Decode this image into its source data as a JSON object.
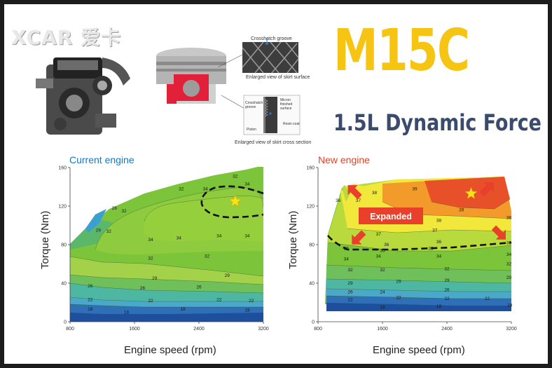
{
  "brand": {
    "watermark": "XCAR 爱卡"
  },
  "header": {
    "title": "M15C",
    "subtitle": "1.5L Dynamic Force"
  },
  "illustrations": {
    "skirt_surface_callout": "Crosshatch groove",
    "skirt_surface_caption": "Enlarged view of skirt surface",
    "cross_section_labels": [
      "Crosshatch groove",
      "Micron finished surface",
      "Resin coat",
      "Piston"
    ],
    "cross_section_caption": "Enlarged view of skirt cross section"
  },
  "colors": {
    "title_yellow": "#f6c514",
    "subtitle_navy": "#3a4b6b",
    "current_title": "#1478c8",
    "new_title": "#e8402a",
    "band_low": "#1e4f9c",
    "band_mid": "#3bb0a0",
    "band_green": "#7cc43a",
    "band_yellow": "#f2e83c",
    "band_orange": "#f29a2a",
    "band_red": "#e8502a",
    "arrow_red": "#e8402a",
    "star": "#f8e31a"
  },
  "chart_data": [
    {
      "type": "heatmap",
      "title": "Current engine",
      "xlabel": "Engine speed (rpm)",
      "ylabel": "Torque (Nm)",
      "xlim": [
        800,
        3200
      ],
      "ylim": [
        0,
        160
      ],
      "x_ticks": [
        "800",
        "1600",
        "2400",
        "3200"
      ],
      "y_ticks": [
        "0",
        "40",
        "80",
        "120",
        "160"
      ],
      "contour_labels": [
        {
          "text": "18",
          "x": 1050,
          "y": 13
        },
        {
          "text": "18",
          "x": 1500,
          "y": 10
        },
        {
          "text": "18",
          "x": 2200,
          "y": 13
        },
        {
          "text": "18",
          "x": 3000,
          "y": 12
        },
        {
          "text": "22",
          "x": 1050,
          "y": 23
        },
        {
          "text": "22",
          "x": 1800,
          "y": 22
        },
        {
          "text": "22",
          "x": 2650,
          "y": 23
        },
        {
          "text": "22",
          "x": 3050,
          "y": 22
        },
        {
          "text": "26",
          "x": 1050,
          "y": 37
        },
        {
          "text": "26",
          "x": 1700,
          "y": 35
        },
        {
          "text": "26",
          "x": 2400,
          "y": 36
        },
        {
          "text": "29",
          "x": 1850,
          "y": 45
        },
        {
          "text": "29",
          "x": 2750,
          "y": 48
        },
        {
          "text": "32",
          "x": 1800,
          "y": 66
        },
        {
          "text": "32",
          "x": 2500,
          "y": 68
        },
        {
          "text": "34",
          "x": 1800,
          "y": 85
        },
        {
          "text": "34",
          "x": 2150,
          "y": 87
        },
        {
          "text": "34",
          "x": 2650,
          "y": 89
        },
        {
          "text": "34",
          "x": 3000,
          "y": 89
        },
        {
          "text": "29",
          "x": 1150,
          "y": 95
        },
        {
          "text": "32",
          "x": 1280,
          "y": 94
        },
        {
          "text": "28",
          "x": 1350,
          "y": 118
        },
        {
          "text": "32",
          "x": 1470,
          "y": 115
        },
        {
          "text": "32",
          "x": 2180,
          "y": 138
        },
        {
          "text": "34",
          "x": 2480,
          "y": 138
        },
        {
          "text": "32",
          "x": 2850,
          "y": 151
        },
        {
          "text": "34",
          "x": 3000,
          "y": 143
        }
      ],
      "annotations": [
        {
          "type": "star",
          "x": 2850,
          "y": 125
        }
      ]
    },
    {
      "type": "heatmap",
      "title": "New engine",
      "xlabel": "Engine speed (rpm)",
      "ylabel": "Torque (Nm)",
      "xlim": [
        800,
        3200
      ],
      "ylim": [
        0,
        160
      ],
      "x_ticks": [
        "800",
        "1600",
        "2400",
        "3200"
      ],
      "y_ticks": [
        "0",
        "40",
        "80",
        "120",
        "160"
      ],
      "contour_labels": [
        {
          "text": "18",
          "x": 1600,
          "y": 15
        },
        {
          "text": "18",
          "x": 2300,
          "y": 16
        },
        {
          "text": "18",
          "x": 3180,
          "y": 17
        },
        {
          "text": "22",
          "x": 1200,
          "y": 23
        },
        {
          "text": "22",
          "x": 1800,
          "y": 25
        },
        {
          "text": "22",
          "x": 2400,
          "y": 24
        },
        {
          "text": "22",
          "x": 2900,
          "y": 24
        },
        {
          "text": "26",
          "x": 1200,
          "y": 31
        },
        {
          "text": "24",
          "x": 1600,
          "y": 31
        },
        {
          "text": "26",
          "x": 2400,
          "y": 33
        },
        {
          "text": "29",
          "x": 1200,
          "y": 40
        },
        {
          "text": "29",
          "x": 1800,
          "y": 42
        },
        {
          "text": "29",
          "x": 2400,
          "y": 43
        },
        {
          "text": "29",
          "x": 3170,
          "y": 46
        },
        {
          "text": "32",
          "x": 1200,
          "y": 54
        },
        {
          "text": "32",
          "x": 1600,
          "y": 54
        },
        {
          "text": "32",
          "x": 2400,
          "y": 55
        },
        {
          "text": "32",
          "x": 3170,
          "y": 60
        },
        {
          "text": "34",
          "x": 1150,
          "y": 65
        },
        {
          "text": "34",
          "x": 1550,
          "y": 68
        },
        {
          "text": "34",
          "x": 2300,
          "y": 68
        },
        {
          "text": "34",
          "x": 3170,
          "y": 70
        },
        {
          "text": "35",
          "x": 1150,
          "y": 76
        },
        {
          "text": "35",
          "x": 1600,
          "y": 74
        },
        {
          "text": "35",
          "x": 2200,
          "y": 76
        },
        {
          "text": "35",
          "x": 3170,
          "y": 82
        },
        {
          "text": "36",
          "x": 1650,
          "y": 80
        },
        {
          "text": "36",
          "x": 2300,
          "y": 83
        },
        {
          "text": "37",
          "x": 1550,
          "y": 91
        },
        {
          "text": "37",
          "x": 2250,
          "y": 95
        },
        {
          "text": "38",
          "x": 2300,
          "y": 105
        },
        {
          "text": "38",
          "x": 3170,
          "y": 108
        },
        {
          "text": "36",
          "x": 1050,
          "y": 126
        },
        {
          "text": "37",
          "x": 1300,
          "y": 126
        },
        {
          "text": "38",
          "x": 1500,
          "y": 134
        },
        {
          "text": "39",
          "x": 2000,
          "y": 138
        },
        {
          "text": "39",
          "x": 2580,
          "y": 116
        }
      ],
      "annotations": [
        {
          "type": "star",
          "x": 2700,
          "y": 133
        },
        {
          "type": "label",
          "text": "Expanded"
        },
        {
          "type": "arrow",
          "direction": "up-left",
          "x": 1250,
          "y": 135
        },
        {
          "type": "arrow",
          "direction": "down-left",
          "x": 1300,
          "y": 87
        },
        {
          "type": "arrow",
          "direction": "down-right",
          "x": 3050,
          "y": 92
        },
        {
          "type": "arrow",
          "direction": "up-right",
          "x": 2900,
          "y": 138
        }
      ]
    }
  ]
}
